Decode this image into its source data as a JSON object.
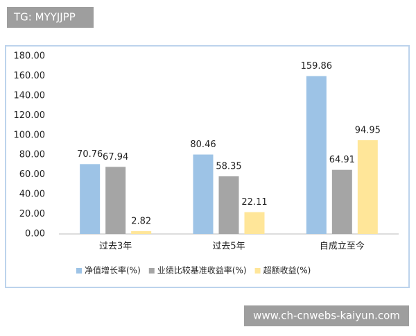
{
  "watermarks": [
    "TG: MYYJJPP",
    "www.ch-cnwebs-kaiyun.com"
  ],
  "chart_data": {
    "type": "bar",
    "categories": [
      "过去3年",
      "过去5年",
      "自成立至今"
    ],
    "series": [
      {
        "name": "净值增长率(%)",
        "color": "#9dc3e6",
        "values": [
          70.76,
          80.46,
          159.86
        ]
      },
      {
        "name": "业绩比较基准收益率(%)",
        "color": "#a5a5a5",
        "values": [
          67.94,
          58.35,
          64.91
        ]
      },
      {
        "name": "超额收益(%)",
        "color": "#ffe699",
        "values": [
          2.82,
          22.11,
          94.95
        ]
      }
    ],
    "ylim": [
      0,
      180
    ],
    "yticks": [
      {
        "value": 0,
        "label": "0.00"
      },
      {
        "value": 20,
        "label": "20.00"
      },
      {
        "value": 40,
        "label": "40.00"
      },
      {
        "value": 60,
        "label": "60.00"
      },
      {
        "value": 80,
        "label": "80.00"
      },
      {
        "value": 100,
        "label": "100.00"
      },
      {
        "value": 120,
        "label": "120.00"
      },
      {
        "value": 140,
        "label": "140.00"
      },
      {
        "value": 160,
        "label": "160.00"
      },
      {
        "value": 180,
        "label": "180.00"
      }
    ],
    "grid": false,
    "legend": "bottom"
  }
}
